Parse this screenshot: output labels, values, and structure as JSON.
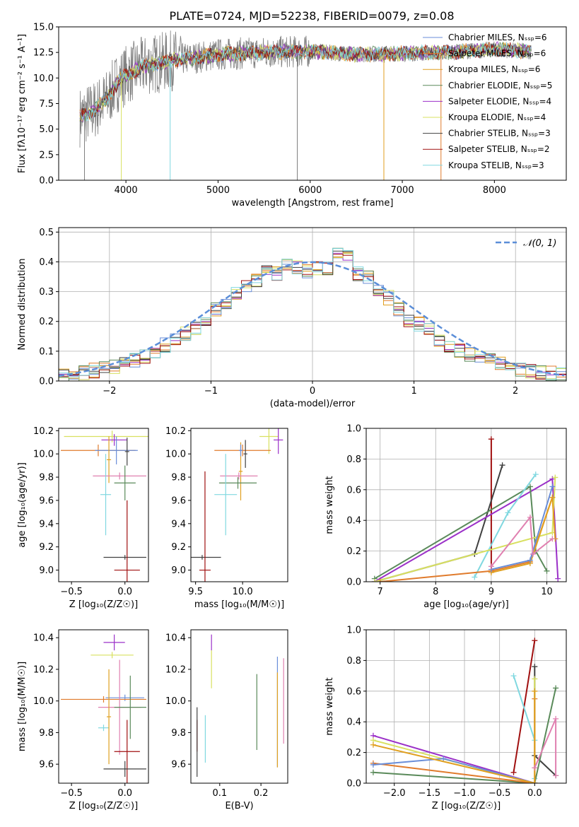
{
  "figure_title": "PLATE=0724, MJD=52238, FIBERID=0079, z=0.08",
  "colors": {
    "Chabrier MILES": "#6a8ed8",
    "Salpeter MILES": "#e07b2c",
    "Kroupa MILES": "#e0a020",
    "Chabrier ELODIE": "#5a8a5a",
    "Salpeter ELODIE": "#9b30c8",
    "Kroupa ELODIE": "#d8e060",
    "Chabrier STELIB": "#404040",
    "Salpeter STELIB": "#a01010",
    "Kroupa STELIB": "#80d8e0",
    "data": "#808080",
    "grid": "#b0b0b0",
    "normal": "#5b8ed8",
    "Chabrier MILES line": "#6a8ed8",
    "pink": "#e080b0"
  },
  "chart_data": [
    {
      "id": "spectrum",
      "type": "line",
      "title": "PLATE=0724, MJD=52238, FIBERID=0079, z=0.08",
      "xlabel": "wavelength [Angstrom, rest frame]",
      "ylabel": "Flux [fλ10⁻¹⁷ erg cm⁻² s⁻¹ A⁻¹]",
      "xlim": [
        3270,
        8780
      ],
      "ylim": [
        0,
        15
      ],
      "xticks": [
        4000,
        5000,
        6000,
        7000,
        8000
      ],
      "yticks": [
        0.0,
        2.5,
        5.0,
        7.5,
        10.0,
        12.5,
        15.0
      ],
      "xrange_data": [
        3500,
        8400
      ],
      "legend": [
        "Chabrier MILES, Nₛₛₚ=6",
        "Salpeter MILES, Nₛₛₚ=6",
        "Kroupa MILES, Nₛₛₚ=6",
        "Chabrier ELODIE, Nₛₛₚ=5",
        "Salpeter ELODIE, Nₛₛₚ=4",
        "Kroupa ELODIE, Nₛₛₚ=4",
        "Chabrier STELIB, Nₛₛₚ=3",
        "Salpeter STELIB, Nₛₛₚ=2",
        "Kroupa STELIB, Nₛₛₚ=3"
      ],
      "legend_position": "right",
      "continuum_shape": [
        [
          3500,
          6.2
        ],
        [
          3650,
          6.8
        ],
        [
          3800,
          8.0
        ],
        [
          3900,
          9.5
        ],
        [
          4000,
          10.3
        ],
        [
          4200,
          11.2
        ],
        [
          4500,
          11.7
        ],
        [
          5000,
          12.3
        ],
        [
          5500,
          12.5
        ],
        [
          6000,
          12.6
        ],
        [
          6500,
          12.3
        ],
        [
          7000,
          12.4
        ],
        [
          7500,
          12.5
        ],
        [
          8000,
          12.8
        ],
        [
          8400,
          12.6
        ]
      ],
      "grid": false
    },
    {
      "id": "residuals",
      "type": "histogram",
      "xlabel": "(data-model)/error",
      "ylabel": "Normed distribution",
      "xlim": [
        -2.5,
        2.5
      ],
      "ylim": [
        0,
        0.515
      ],
      "xticks": [
        -2,
        -1,
        0,
        1,
        2
      ],
      "yticks": [
        0.0,
        0.1,
        0.2,
        0.3,
        0.4,
        0.5
      ],
      "legend": [
        "𝒩(0, 1)"
      ],
      "legend_position": "top-right",
      "grid": true,
      "bin_edges_start": -2.5,
      "bin_width": 0.1,
      "base_counts": [
        0.02,
        0.022,
        0.028,
        0.035,
        0.045,
        0.05,
        0.058,
        0.068,
        0.08,
        0.1,
        0.12,
        0.14,
        0.16,
        0.18,
        0.21,
        0.24,
        0.26,
        0.29,
        0.32,
        0.34,
        0.37,
        0.36,
        0.39,
        0.38,
        0.37,
        0.38,
        0.38,
        0.43,
        0.42,
        0.36,
        0.35,
        0.3,
        0.28,
        0.24,
        0.2,
        0.19,
        0.17,
        0.14,
        0.12,
        0.1,
        0.09,
        0.08,
        0.07,
        0.06,
        0.045,
        0.04,
        0.035,
        0.03,
        0.025,
        0.02
      ]
    },
    {
      "id": "age_vs_Z",
      "type": "errorbar",
      "xlabel": "Z [log₁₀(Z/Z☉)]",
      "ylabel": "age  [log₁₀(age/yr)]",
      "xlim": [
        -0.62,
        0.22
      ],
      "ylim": [
        8.9,
        10.22
      ],
      "xticks": [
        -0.5,
        0.0
      ],
      "yticks": [
        9.0,
        9.2,
        9.4,
        9.6,
        9.8,
        10.0,
        10.2
      ],
      "points": [
        {
          "s": "Kroupa ELODIE",
          "x": -0.12,
          "y": 10.15,
          "xe": 0.45,
          "ye": 0.05
        },
        {
          "s": "Salpeter ELODIE",
          "x": -0.1,
          "y": 10.12,
          "xe": 0.12,
          "ye": 0.05
        },
        {
          "s": "Salpeter MILES",
          "x": -0.25,
          "y": 10.03,
          "xe": 0.35,
          "ye": 0.05
        },
        {
          "s": "Chabrier MILES",
          "x": -0.08,
          "y": 10.03,
          "xe": 0.2,
          "ye": 0.12
        },
        {
          "s": "Chabrier STELIB",
          "x": 0.02,
          "y": 10.02,
          "xe": 0.02,
          "ye": 0.12
        },
        {
          "s": "Kroupa MILES",
          "x": -0.15,
          "y": 9.95,
          "xe": 0.02,
          "ye": 0.2
        },
        {
          "s": "pink",
          "x": -0.05,
          "y": 9.81,
          "xe": 0.25,
          "ye": 0.03
        },
        {
          "s": "Chabrier ELODIE",
          "x": 0.0,
          "y": 9.75,
          "xe": 0.1,
          "ye": 0.15
        },
        {
          "s": "Kroupa STELIB",
          "x": -0.18,
          "y": 9.65,
          "xe": 0.05,
          "ye": 0.35
        },
        {
          "s": "Chabrier STELIB",
          "x": 0.0,
          "y": 9.11,
          "xe": 0.2,
          "ye": 0.02
        },
        {
          "s": "Salpeter STELIB",
          "x": 0.02,
          "y": 9.0,
          "xe": 0.12,
          "ye": 0.6
        }
      ]
    },
    {
      "id": "age_vs_mass",
      "type": "errorbar",
      "xlabel": "mass [log₁₀(M/M☉)]",
      "ylabel": "",
      "xlim": [
        9.45,
        10.48
      ],
      "ylim": [
        8.9,
        10.22
      ],
      "xticks": [
        9.5,
        10.0
      ],
      "yticks": [
        9.0,
        9.2,
        9.4,
        9.6,
        9.8,
        10.0,
        10.2
      ],
      "points": [
        {
          "s": "Kroupa ELODIE",
          "x": 10.28,
          "y": 10.15,
          "xe": 0.1,
          "ye": 0.15
        },
        {
          "s": "Salpeter ELODIE",
          "x": 10.38,
          "y": 10.12,
          "xe": 0.05,
          "ye": 0.12
        },
        {
          "s": "Salpeter MILES",
          "x": 10.0,
          "y": 10.03,
          "xe": 0.3,
          "ye": 0.05
        },
        {
          "s": "Chabrier STELIB",
          "x": 10.03,
          "y": 10.0,
          "xe": 0.02,
          "ye": 0.12
        },
        {
          "s": "Kroupa MILES",
          "x": 9.98,
          "y": 9.85,
          "xe": 0.02,
          "ye": 0.25
        },
        {
          "s": "pink",
          "x": 9.96,
          "y": 9.81,
          "xe": 0.2,
          "ye": 0.03
        },
        {
          "s": "Chabrier ELODIE",
          "x": 9.95,
          "y": 9.75,
          "xe": 0.2,
          "ye": 0.05
        },
        {
          "s": "Kroupa STELIB",
          "x": 9.82,
          "y": 9.65,
          "xe": 0.12,
          "ye": 0.35
        },
        {
          "s": "Chabrier STELIB",
          "x": 9.57,
          "y": 9.11,
          "xe": 0.2,
          "ye": 0.02
        },
        {
          "s": "Salpeter STELIB",
          "x": 9.6,
          "y": 9.0,
          "xe": 0.06,
          "ye": 0.85
        },
        {
          "s": "Chabrier MILES",
          "x": 9.98,
          "y": 10.03,
          "xe": 0.02,
          "ye": 0.05
        }
      ]
    },
    {
      "id": "weight_vs_age",
      "type": "line",
      "xlabel": "age  [log₁₀(age/yr)]",
      "ylabel": "mass weight",
      "xlim": [
        6.75,
        10.35
      ],
      "ylim": [
        0,
        1.0
      ],
      "xticks": [
        7,
        8,
        9,
        10
      ],
      "yticks": [
        0.0,
        0.2,
        0.4,
        0.6,
        0.8,
        1.0
      ],
      "grid": true,
      "series": [
        {
          "s": "Salpeter STELIB",
          "points": [
            [
              9.0,
              0.07
            ],
            [
              9.0,
              0.93
            ]
          ]
        },
        {
          "s": "Chabrier STELIB",
          "points": [
            [
              6.9,
              0.0
            ],
            [
              8.7,
              0.18
            ],
            [
              9.2,
              0.76
            ]
          ]
        },
        {
          "s": "Salpeter ELODIE",
          "points": [
            [
              6.9,
              0.0
            ],
            [
              10.1,
              0.67
            ],
            [
              10.2,
              0.02
            ]
          ]
        },
        {
          "s": "Chabrier ELODIE",
          "points": [
            [
              6.9,
              0.02
            ],
            [
              9.7,
              0.62
            ],
            [
              9.8,
              0.2
            ],
            [
              10.0,
              0.07
            ]
          ]
        },
        {
          "s": "Kroupa STELIB",
          "points": [
            [
              8.7,
              0.03
            ],
            [
              9.3,
              0.45
            ],
            [
              9.8,
              0.7
            ]
          ]
        },
        {
          "s": "Kroupa ELODIE",
          "points": [
            [
              6.9,
              0.0
            ],
            [
              10.1,
              0.32
            ],
            [
              10.15,
              0.68
            ]
          ]
        },
        {
          "s": "Salpeter MILES",
          "points": [
            [
              7.0,
              0.0
            ],
            [
              9.0,
              0.07
            ],
            [
              9.7,
              0.13
            ],
            [
              10.1,
              0.55
            ]
          ]
        },
        {
          "s": "Kroupa MILES",
          "points": [
            [
              9.0,
              0.06
            ],
            [
              9.7,
              0.12
            ],
            [
              10.1,
              0.55
            ],
            [
              10.15,
              0.28
            ]
          ]
        },
        {
          "s": "Chabrier MILES",
          "points": [
            [
              9.0,
              0.08
            ],
            [
              9.7,
              0.14
            ],
            [
              10.1,
              0.62
            ]
          ]
        },
        {
          "s": "pink",
          "points": [
            [
              9.0,
              0.1
            ],
            [
              9.7,
              0.42
            ],
            [
              9.75,
              0.18
            ],
            [
              10.1,
              0.28
            ]
          ]
        }
      ]
    },
    {
      "id": "mass_vs_Z",
      "type": "errorbar",
      "xlabel": "Z [log₁₀(Z/Z☉)]",
      "ylabel": "mass [log₁₀(M/M☉)]",
      "xlim": [
        -0.62,
        0.22
      ],
      "ylim": [
        9.48,
        10.45
      ],
      "xticks": [
        -0.5,
        0.0
      ],
      "yticks": [
        9.6,
        9.8,
        10.0,
        10.2,
        10.4
      ],
      "points": [
        {
          "s": "Salpeter ELODIE",
          "x": -0.1,
          "y": 10.37,
          "xe": 0.1,
          "ye": 0.05
        },
        {
          "s": "Kroupa ELODIE",
          "x": -0.12,
          "y": 10.29,
          "xe": 0.2,
          "ye": 0.02
        },
        {
          "s": "Chabrier MILES",
          "x": 0.0,
          "y": 10.02,
          "xe": 0.18,
          "ye": 0.02
        },
        {
          "s": "Salpeter MILES",
          "x": -0.2,
          "y": 10.01,
          "xe": 0.4,
          "ye": 0.02
        },
        {
          "s": "pink",
          "x": -0.05,
          "y": 9.96,
          "xe": 0.2,
          "ye": 0.3
        },
        {
          "s": "Chabrier ELODIE",
          "x": 0.05,
          "y": 9.96,
          "xe": 0.15,
          "ye": 0.2
        },
        {
          "s": "Kroupa STELIB",
          "x": -0.2,
          "y": 9.83,
          "xe": 0.05,
          "ye": 0.02
        },
        {
          "s": "Kroupa MILES",
          "x": -0.15,
          "y": 9.9,
          "xe": 0.02,
          "ye": 0.3
        },
        {
          "s": "Salpeter STELIB",
          "x": 0.02,
          "y": 9.68,
          "xe": 0.12,
          "ye": 0.2
        },
        {
          "s": "Chabrier STELIB",
          "x": 0.0,
          "y": 9.57,
          "xe": 0.2,
          "ye": 0.05
        }
      ]
    },
    {
      "id": "mass_vs_ebv",
      "type": "errorbar",
      "xlabel": "E(B-V)",
      "ylabel": "",
      "xlim": [
        0.03,
        0.265
      ],
      "ylim": [
        9.48,
        10.45
      ],
      "xticks": [
        0.1,
        0.2
      ],
      "yticks": [
        9.6,
        9.8,
        10.0,
        10.2,
        10.4
      ],
      "points": [
        {
          "s": "Salpeter ELODIE",
          "x": 0.08,
          "y": 10.37,
          "xe": 0,
          "ye": 0.05
        },
        {
          "s": "Kroupa ELODIE",
          "x": 0.08,
          "y": 10.2,
          "xe": 0,
          "ye": 0.12
        },
        {
          "s": "Chabrier ELODIE",
          "x": 0.19,
          "y": 9.93,
          "xe": 0,
          "ye": 0.24
        },
        {
          "s": "Chabrier MILES",
          "x": 0.24,
          "y": 9.93,
          "xe": 0,
          "ye": 0.35
        },
        {
          "s": "pink",
          "x": 0.255,
          "y": 10.0,
          "xe": 0,
          "ye": 0.27
        },
        {
          "s": "Kroupa STELIB",
          "x": 0.065,
          "y": 9.76,
          "xe": 0,
          "ye": 0.15
        },
        {
          "s": "Salpeter STELIB",
          "x": 0.045,
          "y": 9.78,
          "xe": 0,
          "ye": 0.1
        },
        {
          "s": "Chabrier STELIB",
          "x": 0.045,
          "y": 9.74,
          "xe": 0,
          "ye": 0.22
        },
        {
          "s": "Kroupa MILES",
          "x": 0.24,
          "y": 9.88,
          "xe": 0,
          "ye": 0.3
        }
      ]
    },
    {
      "id": "weight_vs_Z",
      "type": "line",
      "xlabel": "Z [log₁₀(Z/Z☉)]",
      "ylabel": "mass weight",
      "xlim": [
        -2.4,
        0.45
      ],
      "ylim": [
        0,
        1.0
      ],
      "xticks": [
        -2.0,
        -1.5,
        -1.0,
        -0.5,
        0.0
      ],
      "yticks": [
        0.0,
        0.2,
        0.4,
        0.6,
        0.8,
        1.0
      ],
      "grid": true,
      "series": [
        {
          "s": "Salpeter STELIB",
          "points": [
            [
              -0.3,
              0.07
            ],
            [
              0.0,
              0.93
            ]
          ]
        },
        {
          "s": "Chabrier STELIB",
          "points": [
            [
              0.0,
              0.76
            ],
            [
              0.0,
              0.18
            ],
            [
              0.3,
              0.05
            ]
          ]
        },
        {
          "s": "Kroupa STELIB",
          "points": [
            [
              -0.3,
              0.7
            ],
            [
              0.0,
              0.28
            ],
            [
              0.0,
              0.03
            ]
          ]
        },
        {
          "s": "Salpeter ELODIE",
          "points": [
            [
              -2.3,
              0.31
            ],
            [
              0.0,
              0.0
            ]
          ]
        },
        {
          "s": "Kroupa ELODIE",
          "points": [
            [
              -2.3,
              0.28
            ],
            [
              0.0,
              0.0
            ],
            [
              0.0,
              0.68
            ]
          ]
        },
        {
          "s": "Chabrier ELODIE",
          "points": [
            [
              -2.3,
              0.07
            ],
            [
              0.0,
              0.0
            ],
            [
              0.3,
              0.62
            ]
          ]
        },
        {
          "s": "Salpeter MILES",
          "points": [
            [
              -2.3,
              0.13
            ],
            [
              0.0,
              0.0
            ],
            [
              0.0,
              0.55
            ]
          ]
        },
        {
          "s": "Chabrier MILES",
          "points": [
            [
              -2.3,
              0.12
            ],
            [
              -1.3,
              0.16
            ],
            [
              0.0,
              0.0
            ]
          ]
        },
        {
          "s": "Kroupa MILES",
          "points": [
            [
              -2.3,
              0.25
            ],
            [
              0.0,
              0.0
            ],
            [
              0.0,
              0.6
            ]
          ]
        },
        {
          "s": "pink",
          "points": [
            [
              0.0,
              0.1
            ],
            [
              0.3,
              0.42
            ],
            [
              0.3,
              0.05
            ]
          ]
        }
      ]
    }
  ]
}
